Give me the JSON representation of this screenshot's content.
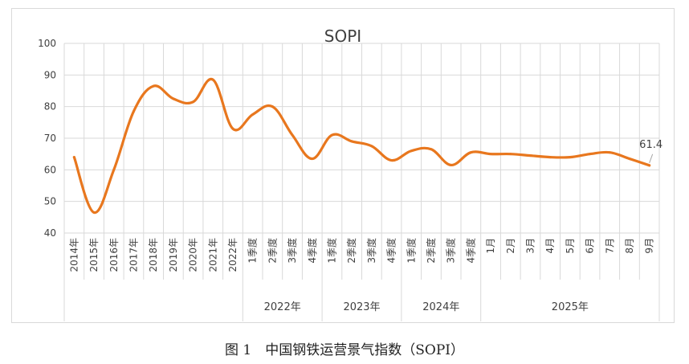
{
  "chart_data": {
    "type": "line",
    "title": "SOPI",
    "ylim": [
      40,
      100
    ],
    "yticks": [
      40,
      50,
      60,
      70,
      80,
      90,
      100
    ],
    "grid": true,
    "legend": "none",
    "categories": [
      "2014年",
      "2015年",
      "2016年",
      "2017年",
      "2018年",
      "2019年",
      "2020年",
      "2021年",
      "2022年",
      "1季度",
      "2季度",
      "3季度",
      "4季度",
      "1季度",
      "2季度",
      "3季度",
      "4季度",
      "1季度",
      "2季度",
      "3季度",
      "4季度",
      "1月",
      "2月",
      "3月",
      "4月",
      "5月",
      "6月",
      "7月",
      "8月",
      "9月"
    ],
    "groups": [
      {
        "label": "2022年",
        "start": 9,
        "end": 12
      },
      {
        "label": "2023年",
        "start": 13,
        "end": 16
      },
      {
        "label": "2024年",
        "start": 17,
        "end": 20
      },
      {
        "label": "2025年",
        "start": 21,
        "end": 29
      }
    ],
    "series": [
      {
        "values": [
          64,
          46.5,
          60,
          78.5,
          86.5,
          82.5,
          81.5,
          88.5,
          73,
          77.5,
          80,
          71,
          63.5,
          71,
          69,
          67.5,
          63,
          66,
          66.5,
          61.5,
          65.5,
          65,
          65,
          64.5,
          64,
          64,
          65,
          65.5,
          63.5,
          61.4
        ]
      }
    ],
    "data_labels": [
      {
        "index": 29,
        "text": "61.4"
      }
    ],
    "color": "#E8771E"
  },
  "caption": "图 1　中国钢铁运营景气指数（SOPI）"
}
